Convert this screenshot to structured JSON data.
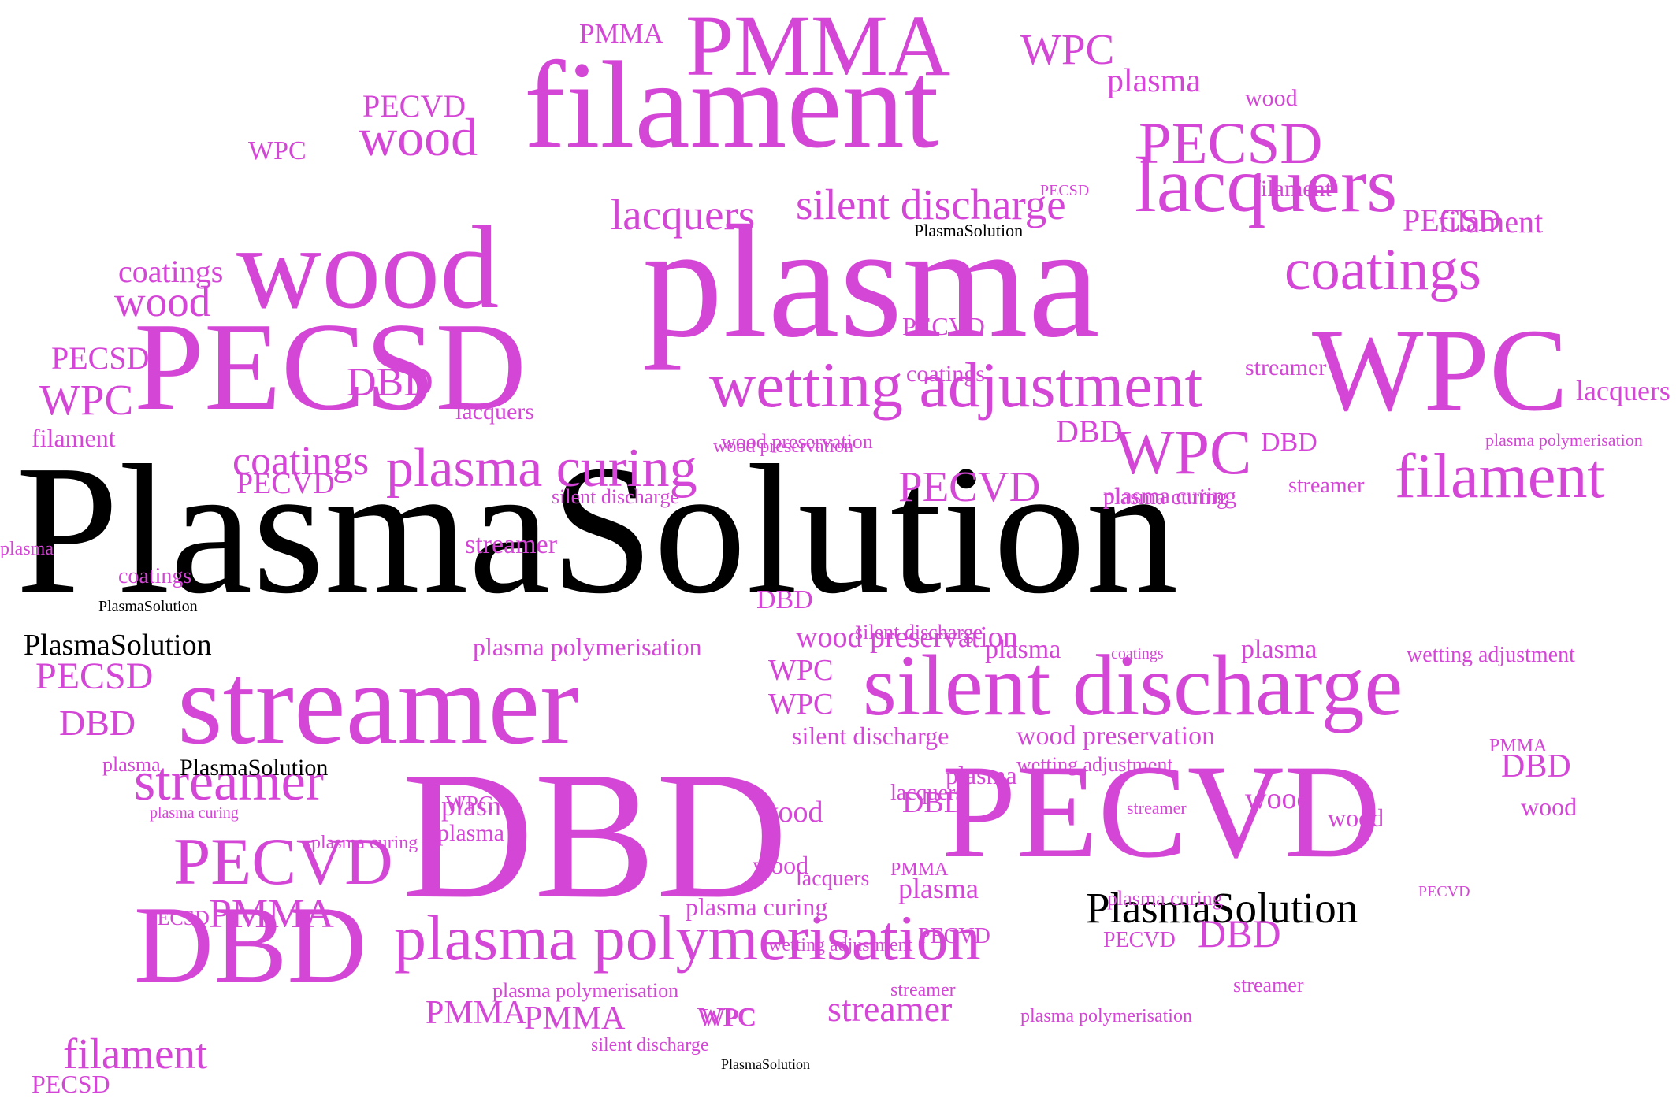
{
  "colors": {
    "accent": "#d447d6",
    "highlight": "#000000",
    "background": "#ffffff"
  },
  "words": [
    {
      "text": "PlasmaSolution",
      "color": "highlight"
    },
    {
      "text": "plasma",
      "color": "accent"
    },
    {
      "text": "filament",
      "color": "accent"
    },
    {
      "text": "PMMA",
      "color": "accent"
    },
    {
      "text": "wood",
      "color": "accent"
    },
    {
      "text": "PECSD",
      "color": "accent"
    },
    {
      "text": "WPC",
      "color": "accent"
    },
    {
      "text": "DBD",
      "color": "accent"
    },
    {
      "text": "PECVD",
      "color": "accent"
    },
    {
      "text": "streamer",
      "color": "accent"
    },
    {
      "text": "silent discharge",
      "color": "accent"
    },
    {
      "text": "lacquers",
      "color": "accent"
    },
    {
      "text": "wetting adjustment",
      "color": "accent"
    },
    {
      "text": "plasma curing",
      "color": "accent"
    },
    {
      "text": "plasma polymerisation",
      "color": "accent"
    },
    {
      "text": "DBD",
      "color": "accent"
    },
    {
      "text": "PECVD",
      "color": "accent"
    },
    {
      "text": "streamer",
      "color": "accent"
    },
    {
      "text": "filament",
      "color": "accent"
    },
    {
      "text": "coatings",
      "color": "accent"
    },
    {
      "text": "WPC",
      "color": "accent"
    },
    {
      "text": "PECSD",
      "color": "accent"
    },
    {
      "text": "PMMA",
      "color": "accent"
    },
    {
      "text": "wood preservation",
      "color": "accent"
    },
    {
      "text": "lacquers",
      "color": "accent"
    },
    {
      "text": "silent discharge",
      "color": "accent"
    },
    {
      "text": "plasma curing",
      "color": "accent"
    },
    {
      "text": "PECSD",
      "color": "accent"
    },
    {
      "text": "PECVD",
      "color": "accent"
    },
    {
      "text": "filament",
      "color": "accent"
    },
    {
      "text": "wood",
      "color": "accent"
    },
    {
      "text": "wood",
      "color": "accent"
    },
    {
      "text": "coatings",
      "color": "accent"
    },
    {
      "text": "DBD",
      "color": "accent"
    },
    {
      "text": "WPC",
      "color": "accent"
    },
    {
      "text": "PlasmaSolution",
      "color": "highlight"
    },
    {
      "text": "PlasmaSolution",
      "color": "highlight"
    },
    {
      "text": "PlasmaSolution",
      "color": "highlight"
    },
    {
      "text": "plasma",
      "color": "accent"
    },
    {
      "text": "PECSD",
      "color": "accent"
    },
    {
      "text": "WPC",
      "color": "accent"
    },
    {
      "text": "PECVD",
      "color": "accent"
    },
    {
      "text": "coatings",
      "color": "accent"
    },
    {
      "text": "wood",
      "color": "accent"
    },
    {
      "text": "PMMA",
      "color": "accent"
    },
    {
      "text": "PECSD",
      "color": "accent"
    },
    {
      "text": "PECVD",
      "color": "accent"
    },
    {
      "text": "wood",
      "color": "accent"
    },
    {
      "text": "filament",
      "color": "accent"
    },
    {
      "text": "PECSD",
      "color": "accent"
    },
    {
      "text": "WPC",
      "color": "accent"
    },
    {
      "text": "filament",
      "color": "accent"
    },
    {
      "text": "coatings",
      "color": "accent"
    },
    {
      "text": "PECSD",
      "color": "accent"
    },
    {
      "text": "plasma",
      "color": "accent"
    },
    {
      "text": "coatings",
      "color": "accent"
    },
    {
      "text": "PECSD",
      "color": "accent"
    },
    {
      "text": "DBD",
      "color": "accent"
    },
    {
      "text": "plasma",
      "color": "accent"
    },
    {
      "text": "PlasmaSolution",
      "color": "highlight"
    },
    {
      "text": "streamer",
      "color": "accent"
    },
    {
      "text": "wood preservation",
      "color": "accent"
    },
    {
      "text": "plasma curing",
      "color": "accent"
    },
    {
      "text": "PECSD",
      "color": "accent"
    },
    {
      "text": "plasma curing",
      "color": "accent"
    },
    {
      "text": "filament",
      "color": "accent"
    },
    {
      "text": "PECSD",
      "color": "accent"
    },
    {
      "text": "WPC",
      "color": "accent"
    },
    {
      "text": "plasma",
      "color": "accent"
    },
    {
      "text": "silent discharge",
      "color": "accent"
    },
    {
      "text": "PlasmaSolution",
      "color": "highlight"
    },
    {
      "text": "DBD",
      "color": "accent"
    },
    {
      "text": "wood",
      "color": "accent"
    },
    {
      "text": "PMMA",
      "color": "accent"
    },
    {
      "text": "plasma polymerisation",
      "color": "accent"
    },
    {
      "text": "PMMA",
      "color": "accent"
    },
    {
      "text": "PMMA",
      "color": "accent"
    },
    {
      "text": "WPC",
      "color": "accent"
    },
    {
      "text": "silent discharge",
      "color": "accent"
    },
    {
      "text": "plasma polymerisation",
      "color": "accent"
    },
    {
      "text": "wetting adjustment",
      "color": "accent"
    },
    {
      "text": "PECVD",
      "color": "accent"
    },
    {
      "text": "wetting adjustment",
      "color": "accent"
    },
    {
      "text": "DBD",
      "color": "accent"
    },
    {
      "text": "streamer",
      "color": "accent"
    },
    {
      "text": "plasma polymerisation",
      "color": "accent"
    },
    {
      "text": "PECVD",
      "color": "accent"
    },
    {
      "text": "streamer",
      "color": "accent"
    },
    {
      "text": "wood preservation",
      "color": "accent"
    },
    {
      "text": "silent discharge",
      "color": "accent"
    },
    {
      "text": "wood preservation",
      "color": "accent"
    },
    {
      "text": "wetting adjustment",
      "color": "accent"
    },
    {
      "text": "PMMA",
      "color": "accent"
    },
    {
      "text": "DBD",
      "color": "accent"
    },
    {
      "text": "wood",
      "color": "accent"
    },
    {
      "text": "lacquers",
      "color": "accent"
    },
    {
      "text": "DBD",
      "color": "accent"
    },
    {
      "text": "plasma",
      "color": "accent"
    },
    {
      "text": "PMMA",
      "color": "accent"
    },
    {
      "text": "lacquers",
      "color": "accent"
    },
    {
      "text": "PECVD",
      "color": "accent"
    },
    {
      "text": "wood",
      "color": "accent"
    },
    {
      "text": "DBD",
      "color": "accent"
    },
    {
      "text": "wood",
      "color": "accent"
    },
    {
      "text": "WPC",
      "color": "accent"
    },
    {
      "text": "plasma",
      "color": "accent"
    },
    {
      "text": "streamer",
      "color": "accent"
    },
    {
      "text": "plasma curing",
      "color": "accent"
    },
    {
      "text": "WPC",
      "color": "accent"
    },
    {
      "text": "WPC",
      "color": "accent"
    },
    {
      "text": "plasma",
      "color": "accent"
    },
    {
      "text": "plasma",
      "color": "accent"
    },
    {
      "text": "coatings",
      "color": "accent"
    },
    {
      "text": "wetting adjustment",
      "color": "accent"
    },
    {
      "text": "lacquers",
      "color": "accent"
    },
    {
      "text": "DBD",
      "color": "accent"
    },
    {
      "text": "DBD",
      "color": "accent"
    },
    {
      "text": "WPC",
      "color": "accent"
    },
    {
      "text": "lacquers",
      "color": "accent"
    },
    {
      "text": "streamer",
      "color": "accent"
    },
    {
      "text": "plasma curing",
      "color": "accent"
    },
    {
      "text": "silent discharge",
      "color": "accent"
    },
    {
      "text": "filament",
      "color": "accent"
    },
    {
      "text": "wood preservation",
      "color": "accent"
    },
    {
      "text": "PlasmaSolution",
      "color": "highlight"
    },
    {
      "text": "wetting adjustment",
      "color": "accent"
    },
    {
      "text": "plasma polymerisation",
      "color": "accent"
    },
    {
      "text": "DBD",
      "color": "accent"
    },
    {
      "text": "wood",
      "color": "accent"
    },
    {
      "text": "streamer",
      "color": "accent"
    },
    {
      "text": "PECVD",
      "color": "accent"
    },
    {
      "text": "PMMA",
      "color": "accent"
    },
    {
      "text": "PECSD",
      "color": "accent"
    },
    {
      "text": "PECVD",
      "color": "accent"
    },
    {
      "text": "silent discharge",
      "color": "accent"
    },
    {
      "text": "wetting adjustment",
      "color": "accent"
    },
    {
      "text": "plasma polymerisation",
      "color": "accent"
    },
    {
      "text": "streamer",
      "color": "accent"
    },
    {
      "text": "plasma",
      "color": "accent"
    },
    {
      "text": "PlasmaSolution",
      "color": "highlight"
    },
    {
      "text": "lacquers",
      "color": "accent"
    },
    {
      "text": "filament",
      "color": "accent"
    },
    {
      "text": "PMMA",
      "color": "accent"
    },
    {
      "text": "silent discharge",
      "color": "accent"
    },
    {
      "text": "DBD",
      "color": "accent"
    },
    {
      "text": "plasma curing",
      "color": "accent"
    },
    {
      "text": "plasma curing",
      "color": "accent"
    },
    {
      "text": "plasma",
      "color": "accent"
    },
    {
      "text": "plasma polymerisation",
      "color": "accent"
    },
    {
      "text": "PECVD",
      "color": "accent"
    },
    {
      "text": "wood",
      "color": "accent"
    },
    {
      "text": "coatings",
      "color": "accent"
    }
  ]
}
